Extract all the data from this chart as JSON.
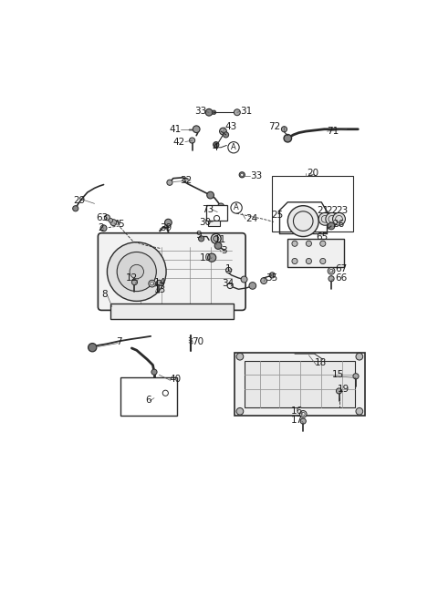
{
  "background_color": "#ffffff",
  "line_color": "#2a2a2a",
  "text_color": "#1a1a1a",
  "font_size": 7.5,
  "fig_w": 4.8,
  "fig_h": 6.55,
  "dpi": 100,
  "labels": [
    [
      "33",
      215,
      57,
      "right"
    ],
    [
      "31",
      262,
      57,
      "left"
    ],
    [
      "41",
      179,
      82,
      "right"
    ],
    [
      "43",
      240,
      79,
      "left"
    ],
    [
      "42",
      184,
      100,
      "right"
    ],
    [
      "4",
      231,
      108,
      "right"
    ],
    [
      "72",
      320,
      78,
      "right"
    ],
    [
      "71",
      386,
      85,
      "left"
    ],
    [
      "32",
      194,
      155,
      "right"
    ],
    [
      "33",
      277,
      148,
      "left"
    ],
    [
      "20",
      357,
      145,
      "left"
    ],
    [
      "29",
      42,
      183,
      "right"
    ],
    [
      "73",
      225,
      196,
      "right"
    ],
    [
      "30",
      221,
      215,
      "right"
    ],
    [
      "A",
      259,
      195,
      "center"
    ],
    [
      "24",
      270,
      210,
      "left"
    ],
    [
      "25",
      307,
      205,
      "left"
    ],
    [
      "21",
      372,
      198,
      "left"
    ],
    [
      "22",
      385,
      198,
      "left"
    ],
    [
      "23",
      399,
      198,
      "left"
    ],
    [
      "26",
      393,
      218,
      "left"
    ],
    [
      "65",
      370,
      236,
      "left"
    ],
    [
      "5",
      88,
      218,
      "left"
    ],
    [
      "63",
      74,
      208,
      "right"
    ],
    [
      "2",
      68,
      222,
      "right"
    ],
    [
      "39",
      148,
      222,
      "left"
    ],
    [
      "9",
      207,
      233,
      "right"
    ],
    [
      "11",
      226,
      240,
      "left"
    ],
    [
      "3",
      235,
      255,
      "left"
    ],
    [
      "10",
      222,
      265,
      "right"
    ],
    [
      "12",
      117,
      294,
      "right"
    ],
    [
      "8",
      74,
      318,
      "right"
    ],
    [
      "14",
      140,
      300,
      "left"
    ],
    [
      "13",
      140,
      311,
      "left"
    ],
    [
      "1",
      250,
      281,
      "right"
    ],
    [
      "34",
      253,
      302,
      "right"
    ],
    [
      "35",
      298,
      294,
      "left"
    ],
    [
      "67",
      397,
      281,
      "left"
    ],
    [
      "66",
      397,
      294,
      "left"
    ],
    [
      "7",
      86,
      385,
      "left"
    ],
    [
      "70",
      193,
      385,
      "left"
    ],
    [
      "40",
      161,
      438,
      "left"
    ],
    [
      "6",
      136,
      468,
      "right"
    ],
    [
      "18",
      368,
      415,
      "left"
    ],
    [
      "15",
      393,
      432,
      "left"
    ],
    [
      "19",
      401,
      452,
      "left"
    ],
    [
      "16",
      352,
      484,
      "right"
    ],
    [
      "17",
      352,
      496,
      "right"
    ]
  ]
}
